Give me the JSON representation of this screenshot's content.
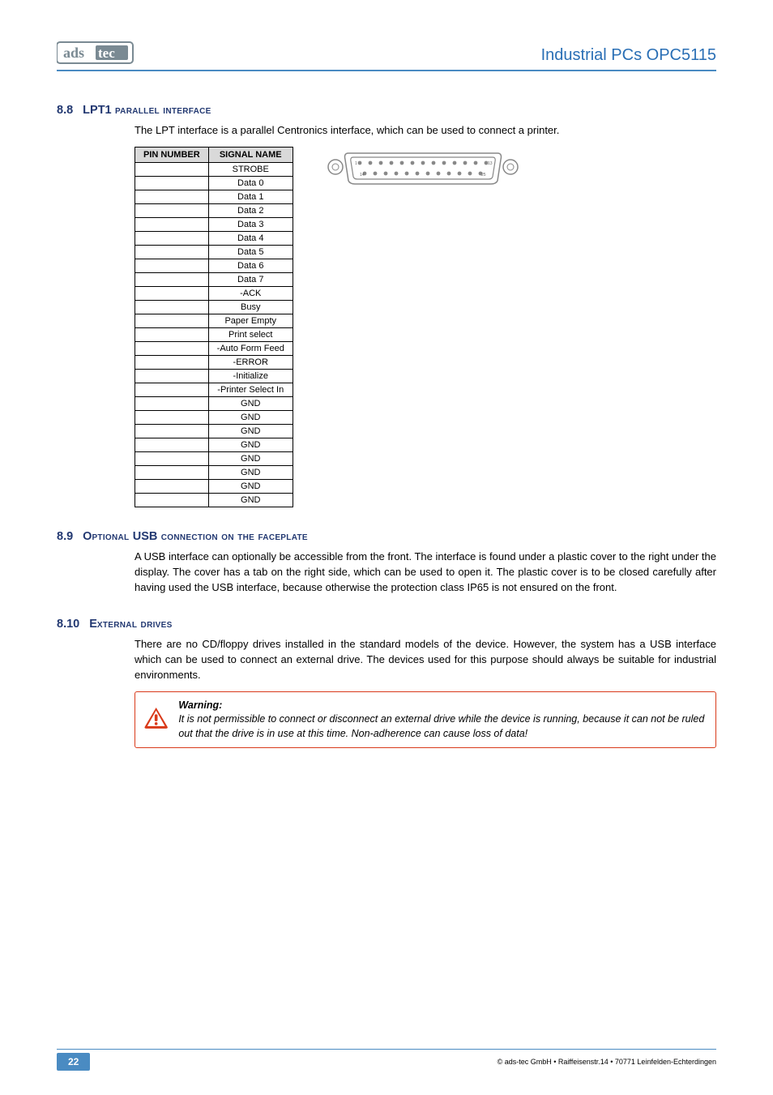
{
  "header": {
    "doc_title": "Industrial PCs OPC5115"
  },
  "section_8_8": {
    "num": "8.8",
    "title_lead": "LPT1",
    "title_rest": " parallel interface",
    "intro": "The LPT interface is a parallel Centronics interface, which can be used to connect a printer.",
    "table": {
      "col1": "PIN NUMBER",
      "col2": "SIGNAL NAME",
      "rows": [
        [
          "",
          "STROBE"
        ],
        [
          "",
          "Data 0"
        ],
        [
          "",
          "Data 1"
        ],
        [
          "",
          "Data 2"
        ],
        [
          "",
          "Data 3"
        ],
        [
          "",
          "Data 4"
        ],
        [
          "",
          "Data 5"
        ],
        [
          "",
          "Data 6"
        ],
        [
          "",
          "Data 7"
        ],
        [
          "",
          "-ACK"
        ],
        [
          "",
          "Busy"
        ],
        [
          "",
          "Paper Empty"
        ],
        [
          "",
          "Print select"
        ],
        [
          "",
          "-Auto Form Feed"
        ],
        [
          "",
          "-ERROR"
        ],
        [
          "",
          "-Initialize"
        ],
        [
          "",
          "-Printer Select In"
        ],
        [
          "",
          "GND"
        ],
        [
          "",
          "GND"
        ],
        [
          "",
          "GND"
        ],
        [
          "",
          "GND"
        ],
        [
          "",
          "GND"
        ],
        [
          "",
          "GND"
        ],
        [
          "",
          "GND"
        ],
        [
          "",
          "GND"
        ]
      ]
    }
  },
  "section_8_9": {
    "num": "8.9",
    "title_lead": "O",
    "title_mid1": "ptional ",
    "title_usb": "USB",
    "title_rest": " connection on the faceplate",
    "body": "A USB interface can optionally be accessible from the front. The interface is found under a plastic cover to the right under the display. The cover has a tab on the right side, which can be used to open it. The plastic cover is to be closed carefully after having used the USB interface, because otherwise the protection class IP65 is not ensured on the front."
  },
  "section_8_10": {
    "num": "8.10",
    "title_lead": "E",
    "title_rest": "xternal drives",
    "body": "There are no CD/floppy drives installed in the standard models of the device. However, the system has a USB interface which can be used to connect an external drive. The devices used for this purpose should always be suitable for industrial environments.",
    "warning_title": "Warning:",
    "warning_body": "It is not permissible to connect or disconnect an external drive while the device is running, because it can not be ruled out that the drive is in use at this time. Non-adherence can cause loss of data!"
  },
  "footer": {
    "page": "22",
    "copyright": "© ads-tec GmbH • Raiffeisenstr.14 • 70771 Leinfelden-Echterdingen"
  },
  "colors": {
    "header_blue": "#2a6fb5",
    "rule_blue": "#4a8bc2",
    "warn_red": "#d93a1a",
    "heading_navy": "#223871",
    "th_gray": "#d9d9d9",
    "logo_gray": "#7a8a93"
  }
}
